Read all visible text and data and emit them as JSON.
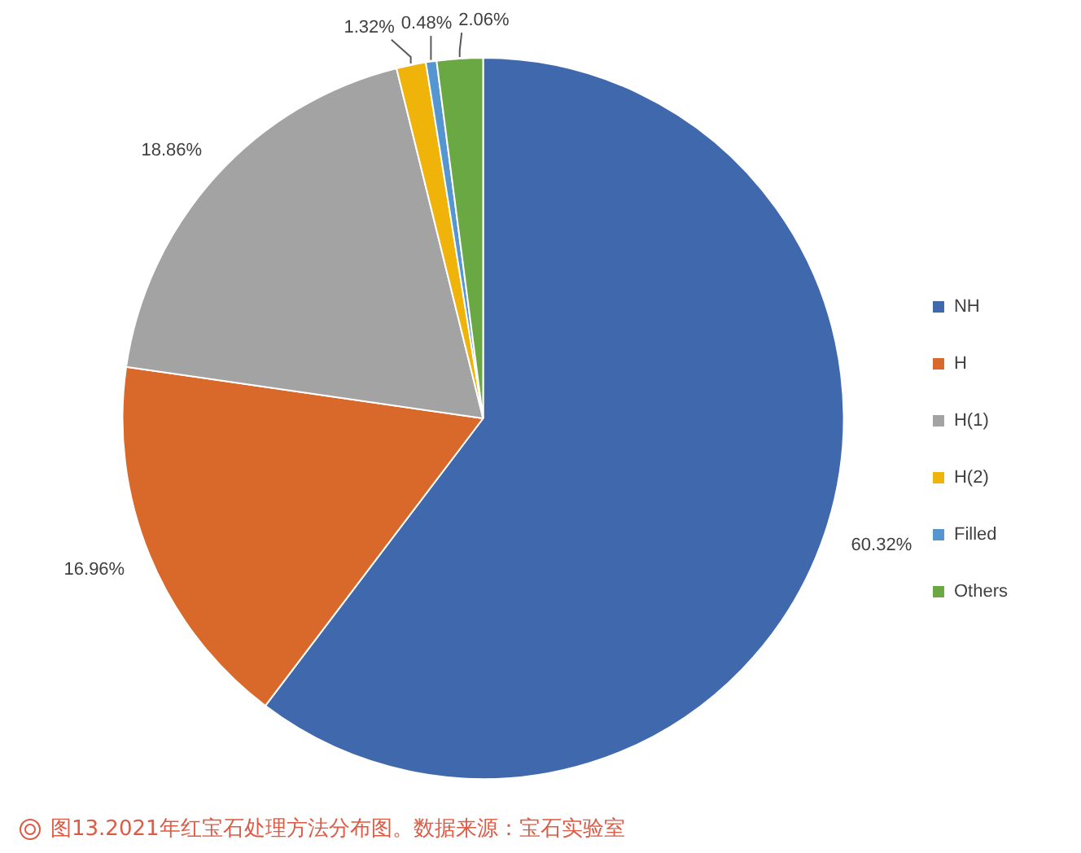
{
  "chart_data": {
    "type": "pie",
    "categories": [
      "NH",
      "H",
      "H(1)",
      "H(2)",
      "Filled",
      "Others"
    ],
    "values": [
      60.32,
      16.96,
      18.86,
      1.32,
      0.48,
      2.06
    ],
    "colors": [
      "#4069ad",
      "#d8692a",
      "#a3a3a3",
      "#f0b30a",
      "#5595d0",
      "#6aa843"
    ],
    "value_labels": [
      "60.32%",
      "16.96%",
      "18.86%",
      "1.32%",
      "0.48%",
      "2.06%"
    ],
    "legend": "right",
    "annotations": [
      "图13.2021年红宝石处理方法分布图。数据来源：宝石实验室"
    ]
  }
}
